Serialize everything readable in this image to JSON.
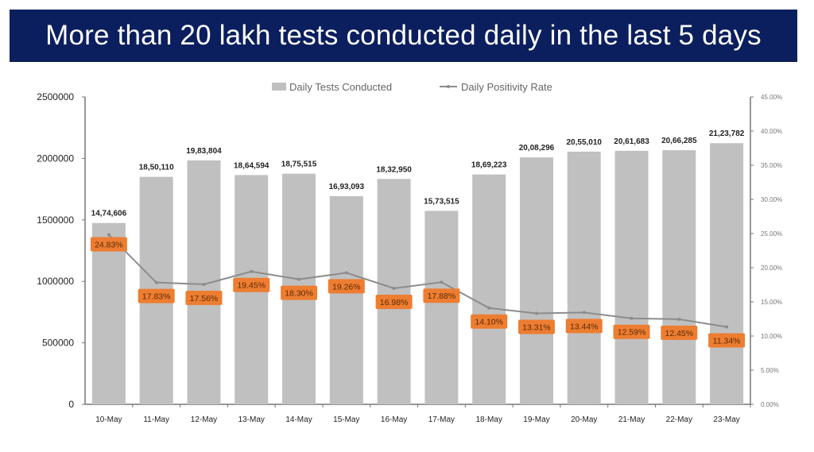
{
  "chart_data": {
    "type": "bar",
    "title": "More than 20 lakh tests conducted daily in the last 5 days",
    "categories": [
      "10-May",
      "11-May",
      "12-May",
      "13-May",
      "14-May",
      "15-May",
      "16-May",
      "17-May",
      "18-May",
      "19-May",
      "20-May",
      "21-May",
      "22-May",
      "23-May"
    ],
    "series": [
      {
        "name": "Daily Tests Conducted",
        "type": "bar",
        "axis": "left",
        "color": "#c0c0c0",
        "values": [
          1474606,
          1850110,
          1983804,
          1864594,
          1875515,
          1693093,
          1832950,
          1573515,
          1869223,
          2008296,
          2055010,
          2061683,
          2066285,
          2123782
        ],
        "labels": [
          "14,74,606",
          "18,50,110",
          "19,83,804",
          "18,64,594",
          "18,75,515",
          "16,93,093",
          "18,32,950",
          "15,73,515",
          "18,69,223",
          "20,08,296",
          "20,55,010",
          "20,61,683",
          "20,66,285",
          "21,23,782"
        ]
      },
      {
        "name": "Daily Positivity Rate",
        "type": "line",
        "axis": "right",
        "color": "#8c8c8c",
        "label_color": "#ed7d31",
        "values": [
          24.83,
          17.83,
          17.56,
          19.45,
          18.3,
          19.26,
          16.98,
          17.88,
          14.1,
          13.31,
          13.44,
          12.59,
          12.45,
          11.34
        ],
        "labels": [
          "24.83%",
          "17.83%",
          "17.56%",
          "19.45%",
          "18.30%",
          "19.26%",
          "16.98%",
          "17.88%",
          "14.10%",
          "13.31%",
          "13.44%",
          "12.59%",
          "12.45%",
          "11.34%"
        ]
      }
    ],
    "y_left": {
      "range": [
        0,
        2500000
      ],
      "ticks": [
        "0",
        "500000",
        "1000000",
        "1500000",
        "2000000",
        "2500000"
      ]
    },
    "y_right": {
      "range": [
        0,
        45
      ],
      "ticks": [
        "0.00%",
        "5.00%",
        "10.00%",
        "15.00%",
        "20.00%",
        "25.00%",
        "30.00%",
        "35.00%",
        "40.00%",
        "45.00%"
      ]
    },
    "legend_position": "top",
    "grid": false
  }
}
